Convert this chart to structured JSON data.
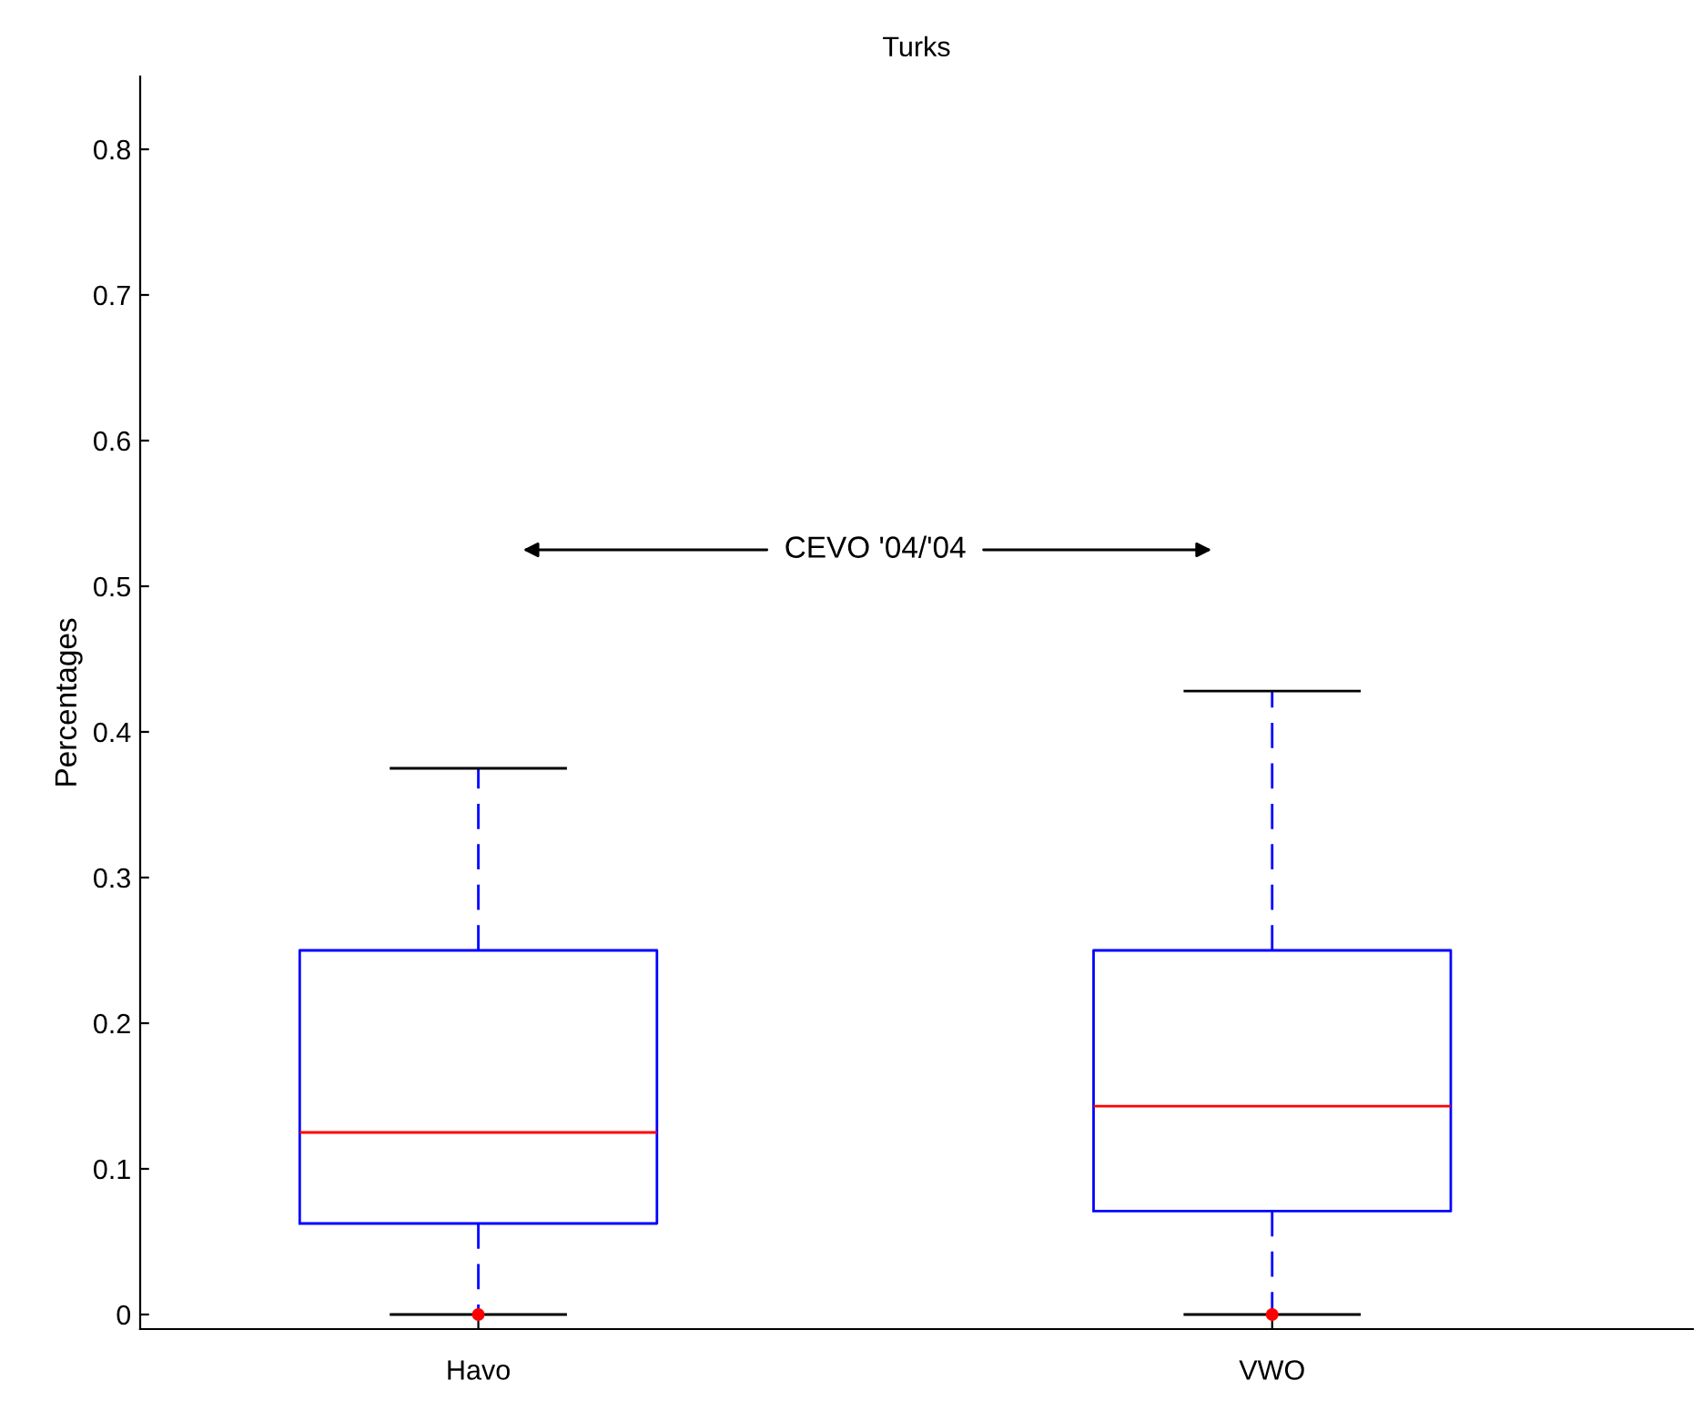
{
  "chart_data": {
    "type": "box",
    "title": "Turks",
    "ylabel": "Percentages",
    "categories": [
      "Havo",
      "VWO"
    ],
    "boxes": [
      {
        "low": 0,
        "q1": 0.0625,
        "median": 0.125,
        "q3": 0.25,
        "high": 0.375,
        "outliers": [
          0
        ]
      },
      {
        "low": 0,
        "q1": 0.071,
        "median": 0.143,
        "q3": 0.25,
        "high": 0.428,
        "outliers": [
          0
        ]
      }
    ],
    "color": "#0000ff",
    "ylim": [
      -0.01,
      0.85
    ],
    "yticks": [
      0,
      0.1,
      0.2,
      0.3,
      0.4,
      0.5,
      0.6,
      0.7,
      0.8
    ],
    "annotations": [
      "CEVO '04/'04"
    ],
    "grid": false,
    "line_style": "dashed"
  }
}
